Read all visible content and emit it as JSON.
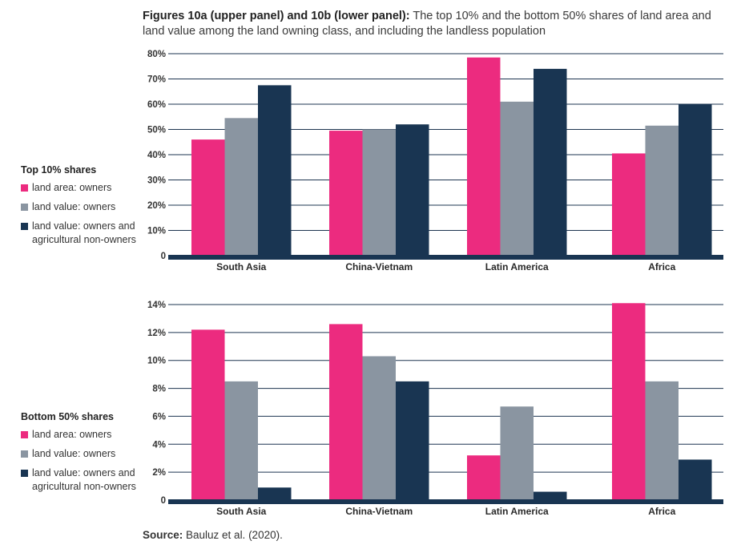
{
  "title": {
    "bold": "Figures 10a (upper panel) and 10b (lower panel):",
    "text": " The top 10% and the bottom 50% shares of land area and land value among the land owning class, and including the landless population"
  },
  "source": {
    "label": "Source:",
    "text": " Bauluz et al. (2020)."
  },
  "colors": {
    "land_area_owners": "#ec2b7f",
    "land_value_owners": "#8a95a1",
    "land_value_incl": "#193552",
    "grid": "#1e3550"
  },
  "chart_data": [
    {
      "type": "bar",
      "legend_title": "Top 10% shares",
      "categories": [
        "South Asia",
        "China-Vietnam",
        "Latin America",
        "Africa"
      ],
      "ylim": [
        0,
        80
      ],
      "yticks": [
        0,
        10,
        20,
        30,
        40,
        50,
        60,
        70,
        80
      ],
      "ytick_labels": [
        "0",
        "10%",
        "20%",
        "30%",
        "40%",
        "50%",
        "60%",
        "70%",
        "80%"
      ],
      "grid": true,
      "legend_position": "left",
      "series": [
        {
          "name": "land area: owners",
          "values": [
            46,
            49.5,
            78.5,
            40.5
          ]
        },
        {
          "name": "land value: owners",
          "values": [
            54.5,
            50,
            61,
            51.5
          ]
        },
        {
          "name": "land value: owners and agricultural non-owners",
          "values": [
            67.5,
            52,
            74,
            60
          ]
        }
      ]
    },
    {
      "type": "bar",
      "legend_title": "Bottom 50% shares",
      "categories": [
        "South Asia",
        "China-Vietnam",
        "Latin America",
        "Africa"
      ],
      "ylim": [
        0,
        14
      ],
      "yticks": [
        0,
        2,
        4,
        6,
        8,
        10,
        12,
        14
      ],
      "ytick_labels": [
        "0",
        "2%",
        "4%",
        "6%",
        "8%",
        "10%",
        "12%",
        "14%"
      ],
      "grid": true,
      "legend_position": "left",
      "series": [
        {
          "name": "land area: owners",
          "values": [
            12.2,
            12.6,
            3.2,
            14.1
          ]
        },
        {
          "name": "land value: owners",
          "values": [
            8.5,
            10.3,
            6.7,
            8.5
          ]
        },
        {
          "name": "land value: owners and agricultural non-owners",
          "values": [
            0.9,
            8.5,
            0.6,
            2.9
          ]
        }
      ]
    }
  ]
}
